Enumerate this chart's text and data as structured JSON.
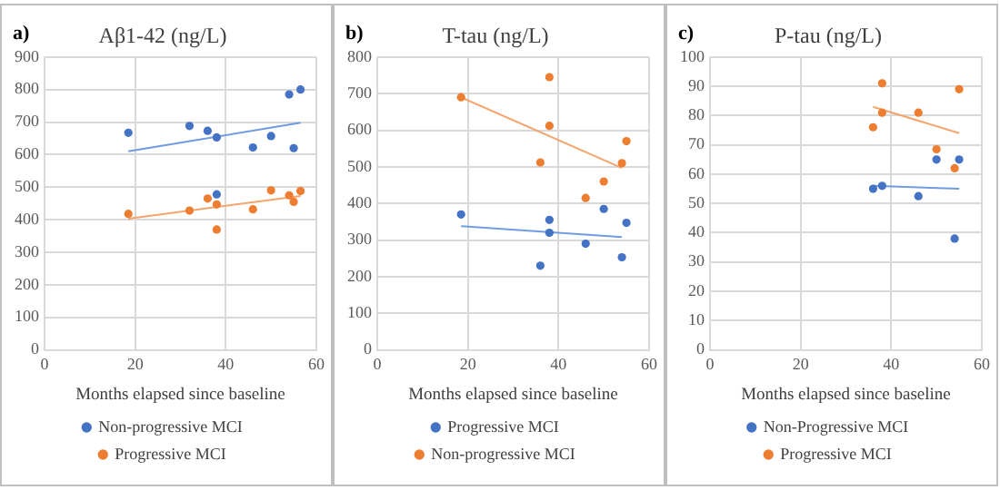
{
  "chart_data": [
    {
      "type": "scatter",
      "title": "Aβ1-42 (ng/L)",
      "annotations": [
        "a)"
      ],
      "xlabel": "Months elapsed since baseline",
      "xlim": [
        0,
        60
      ],
      "xticks": [
        0,
        20,
        40,
        60
      ],
      "ylim": [
        0,
        900
      ],
      "yticks": [
        0,
        100,
        200,
        300,
        400,
        500,
        600,
        700,
        800,
        900
      ],
      "grid": true,
      "legend": "bottom",
      "marker": "circle",
      "series": [
        {
          "name": "Non-progressive MCI",
          "color": "#4472c4",
          "x": [
            18.5,
            32,
            36,
            38,
            46,
            50,
            54,
            55,
            56.5,
            38
          ],
          "values": [
            667,
            688,
            673,
            653,
            622,
            657,
            785,
            620,
            800,
            478
          ]
        },
        {
          "name": "Progressive MCI",
          "color": "#ed7d31",
          "x": [
            18.5,
            32,
            36,
            38,
            38,
            46,
            50,
            54,
            55,
            56.5
          ],
          "values": [
            418,
            428,
            465,
            447,
            370,
            432,
            490,
            475,
            455,
            488
          ]
        },
        {
          "type": "line",
          "marker": "none",
          "color": "#6f9be0",
          "x": [
            18.5,
            56.5
          ],
          "values": [
            610,
            698
          ]
        },
        {
          "type": "line",
          "marker": "none",
          "color": "#f4a46c",
          "x": [
            18.5,
            56.5
          ],
          "values": [
            403,
            473
          ]
        }
      ]
    },
    {
      "type": "scatter",
      "title": "T-tau (ng/L)",
      "annotations": [
        "b)"
      ],
      "xlabel": "Months elapsed since baseline",
      "xlim": [
        0,
        60
      ],
      "xticks": [
        0,
        20,
        40,
        60
      ],
      "ylim": [
        0,
        800
      ],
      "yticks": [
        0,
        100,
        200,
        300,
        400,
        500,
        600,
        700,
        800
      ],
      "grid": true,
      "legend": "bottom",
      "marker": "circle",
      "series": [
        {
          "name": "Progressive MCI",
          "color": "#4472c4",
          "x": [
            18.5,
            36,
            38,
            38,
            46,
            50,
            54,
            55
          ],
          "values": [
            370,
            230,
            355,
            320,
            290,
            385,
            253,
            347
          ]
        },
        {
          "name": "Non-progressive MCI",
          "color": "#ed7d31",
          "x": [
            18.5,
            36,
            38,
            38,
            46,
            50,
            54,
            55
          ],
          "values": [
            690,
            512,
            745,
            612,
            415,
            460,
            510,
            570
          ]
        },
        {
          "type": "line",
          "marker": "none",
          "color": "#6f9be0",
          "x": [
            18.5,
            54
          ],
          "values": [
            338,
            308
          ]
        },
        {
          "type": "line",
          "marker": "none",
          "color": "#f4a46c",
          "x": [
            18.5,
            54
          ],
          "values": [
            690,
            497
          ]
        }
      ]
    },
    {
      "type": "scatter",
      "title": "P-tau (ng/L)",
      "annotations": [
        "c)"
      ],
      "xlabel": "Months elapsed since baseline",
      "xlim": [
        0,
        60
      ],
      "xticks": [
        0,
        20,
        40,
        60
      ],
      "ylim": [
        0,
        100
      ],
      "yticks": [
        0,
        10,
        20,
        30,
        40,
        50,
        60,
        70,
        80,
        90,
        100
      ],
      "grid": true,
      "legend": "bottom",
      "marker": "circle",
      "series": [
        {
          "name": "Non-Progressive MCI",
          "color": "#4472c4",
          "x": [
            36,
            38,
            46,
            50,
            54,
            55
          ],
          "values": [
            55,
            56,
            52.5,
            65,
            38,
            65
          ]
        },
        {
          "name": "Progressive MCI",
          "color": "#ed7d31",
          "x": [
            36,
            38,
            38,
            46,
            50,
            54,
            55
          ],
          "values": [
            76,
            91,
            81,
            81,
            68.5,
            62,
            89
          ]
        },
        {
          "type": "line",
          "marker": "none",
          "color": "#6f9be0",
          "x": [
            36,
            55
          ],
          "values": [
            56,
            55
          ]
        },
        {
          "type": "line",
          "marker": "none",
          "color": "#f4a46c",
          "x": [
            36,
            55
          ],
          "values": [
            83,
            74
          ]
        }
      ]
    }
  ]
}
